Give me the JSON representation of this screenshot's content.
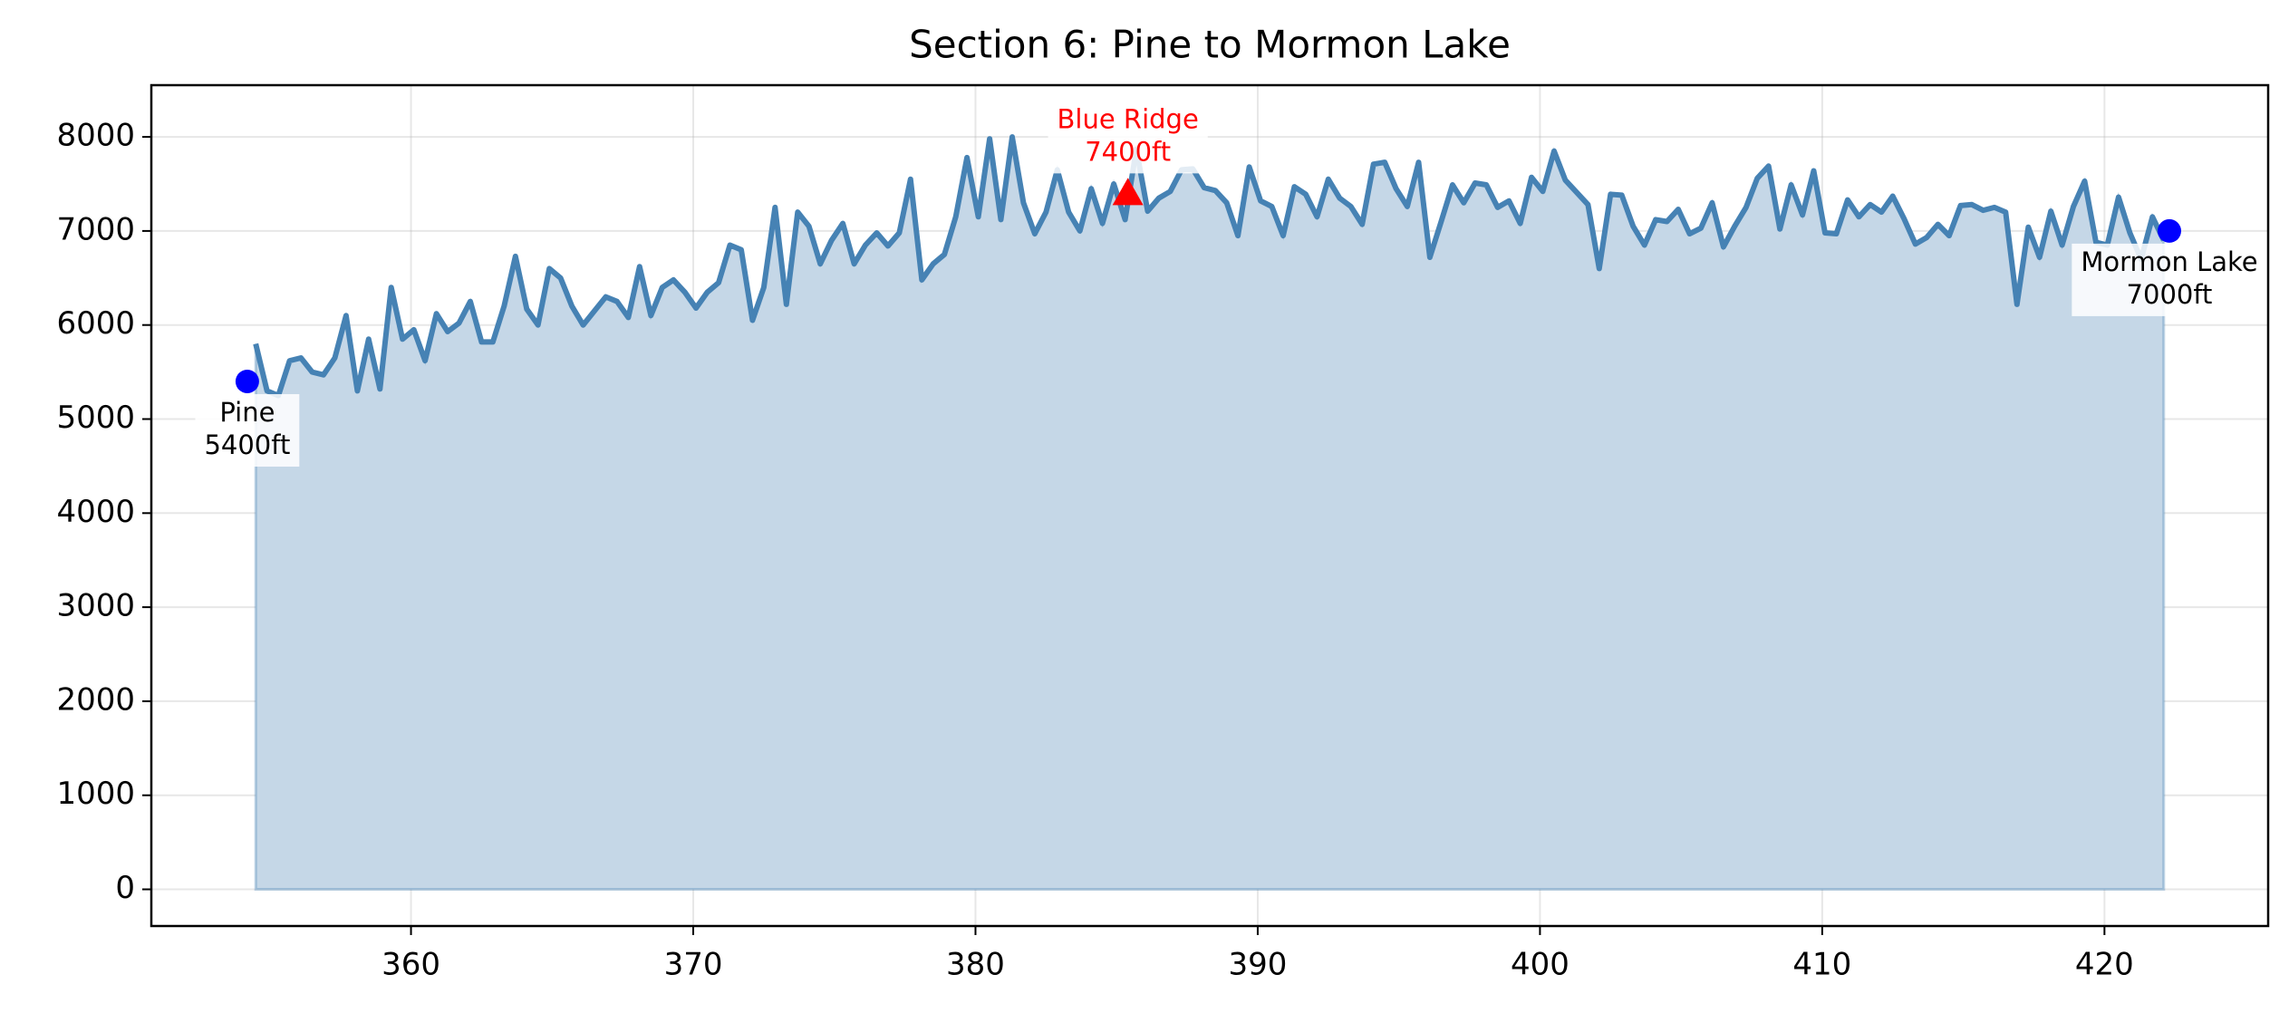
{
  "chart_data": {
    "type": "area-line",
    "title": "Section 6: Pine to Mormon Lake",
    "x": [
      354.5,
      354.9,
      355.3,
      355.7,
      356.1,
      356.5,
      356.9,
      357.3,
      357.7,
      358.1,
      358.5,
      358.9,
      359.3,
      359.7,
      360.1,
      360.5,
      360.9,
      361.3,
      361.7,
      362.1,
      362.5,
      362.9,
      363.3,
      363.7,
      364.1,
      364.5,
      364.9,
      365.3,
      365.7,
      366.1,
      366.5,
      366.9,
      367.3,
      367.7,
      368.1,
      368.5,
      368.9,
      369.3,
      369.7,
      370.1,
      370.5,
      370.9,
      371.3,
      371.7,
      372.1,
      372.5,
      372.9,
      373.3,
      373.7,
      374.1,
      374.5,
      374.9,
      375.3,
      375.7,
      376.1,
      376.5,
      376.9,
      377.3,
      377.7,
      378.1,
      378.5,
      378.9,
      379.3,
      379.7,
      380.1,
      380.5,
      380.9,
      381.3,
      381.7,
      382.1,
      382.5,
      382.9,
      383.3,
      383.7,
      384.1,
      384.5,
      384.9,
      385.3,
      385.7,
      386.1,
      386.5,
      386.9,
      387.3,
      387.7,
      388.1,
      388.5,
      388.9,
      389.3,
      389.7,
      390.1,
      390.5,
      390.9,
      391.3,
      391.7,
      392.1,
      392.5,
      392.9,
      393.3,
      393.7,
      394.1,
      394.5,
      394.9,
      395.3,
      395.7,
      396.1,
      396.5,
      396.9,
      397.3,
      397.7,
      398.1,
      398.5,
      398.9,
      399.3,
      399.7,
      400.1,
      400.5,
      400.9,
      401.3,
      401.7,
      402.1,
      402.5,
      402.9,
      403.3,
      403.7,
      404.1,
      404.5,
      404.9,
      405.3,
      405.7,
      406.1,
      406.5,
      406.9,
      407.3,
      407.7,
      408.1,
      408.5,
      408.9,
      409.3,
      409.7,
      410.1,
      410.5,
      410.9,
      411.3,
      411.7,
      412.1,
      412.5,
      412.9,
      413.3,
      413.7,
      414.1,
      414.5,
      414.9,
      415.3,
      415.7,
      416.1,
      416.5,
      416.9,
      417.3,
      417.7,
      418.1,
      418.5,
      418.9,
      419.3,
      419.7,
      420.1,
      420.5,
      420.9,
      421.3,
      421.7,
      422.1
    ],
    "series": [
      {
        "color": "#4682b4",
        "fill": "#c5d7e7",
        "values": [
          5800,
          5300,
          5250,
          5620,
          5650,
          5500,
          5470,
          5650,
          6100,
          5300,
          5850,
          5320,
          6400,
          5850,
          5950,
          5620,
          6120,
          5930,
          6020,
          6250,
          5820,
          5820,
          6200,
          6730,
          6170,
          6000,
          6600,
          6500,
          6200,
          6000,
          6150,
          6300,
          6250,
          6080,
          6620,
          6100,
          6400,
          6480,
          6350,
          6180,
          6350,
          6450,
          6850,
          6800,
          6050,
          6400,
          7250,
          6220,
          7200,
          7050,
          6650,
          6900,
          7080,
          6650,
          6850,
          6980,
          6840,
          6980,
          7550,
          6480,
          6650,
          6750,
          7150,
          7780,
          7150,
          7980,
          7120,
          8000,
          7300,
          6970,
          7200,
          7650,
          7200,
          7000,
          7450,
          7080,
          7500,
          7120,
          7870,
          7210,
          7350,
          7420,
          7650,
          7660,
          7460,
          7430,
          7300,
          6950,
          7680,
          7320,
          7260,
          6950,
          7470,
          7390,
          7150,
          7550,
          7350,
          7260,
          7070,
          7710,
          7730,
          7450,
          7260,
          7730,
          6720,
          7100,
          7490,
          7300,
          7510,
          7490,
          7250,
          7320,
          7080,
          7570,
          7420,
          7850,
          7540,
          7410,
          7280,
          6600,
          7390,
          7380,
          7050,
          6850,
          7120,
          7100,
          7230,
          6970,
          7030,
          7300,
          6830,
          7050,
          7250,
          7560,
          7690,
          7020,
          7490,
          7170,
          7640,
          6980,
          6970,
          7330,
          7150,
          7280,
          7200,
          7370,
          7130,
          6860,
          6930,
          7070,
          6950,
          7270,
          7280,
          7220,
          7250,
          7200,
          6220,
          7040,
          6720,
          7210,
          6850,
          7260,
          7530,
          6880,
          6850,
          7360,
          6980,
          6700,
          7150,
          6900
        ]
      }
    ],
    "annotations": [
      {
        "name": "Pine",
        "x": 354.2,
        "y": 5400,
        "value_label": "5400ft",
        "marker": "circle",
        "color": "#0000ff",
        "text_color": "#000000",
        "position": "below"
      },
      {
        "name": "Blue Ridge",
        "x": 385.4,
        "y": 7400,
        "value_label": "7400ft",
        "marker": "triangle",
        "color": "#ff0000",
        "text_color": "#ff0000",
        "position": "above"
      },
      {
        "name": "Mormon Lake",
        "x": 422.3,
        "y": 7000,
        "value_label": "7000ft",
        "marker": "circle",
        "color": "#0000ff",
        "text_color": "#000000",
        "position": "below"
      }
    ],
    "xlim": [
      350.8,
      425.8
    ],
    "ylim": [
      -390,
      8550
    ],
    "xticks": [
      360,
      370,
      380,
      390,
      400,
      410,
      420
    ],
    "yticks": [
      0,
      1000,
      2000,
      3000,
      4000,
      5000,
      6000,
      7000,
      8000
    ],
    "grid": true
  }
}
